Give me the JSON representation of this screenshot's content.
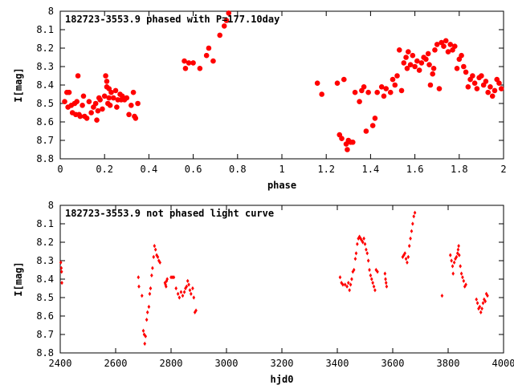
{
  "chart_data": [
    {
      "type": "scatter",
      "title": "182723-3553.9 phased with P=177.10day",
      "xlabel": "phase",
      "ylabel": "I[mag]",
      "xlim": [
        0,
        2
      ],
      "ylim": [
        8,
        8.8
      ],
      "y_inverted": true,
      "grid": false,
      "marker_color": "#ff0000",
      "marker": "filled-circle",
      "x_ticks": [
        "0",
        "0.2",
        "0.4",
        "0.6",
        "0.8",
        "1",
        "1.2",
        "1.4",
        "1.6",
        "1.8",
        "2"
      ],
      "y_ticks": [
        "8",
        "8.1",
        "8.2",
        "8.3",
        "8.4",
        "8.5",
        "8.6",
        "8.7",
        "8.8"
      ],
      "series": [
        {
          "points": [
            [
              0.02,
              8.49
            ],
            [
              0.03,
              8.44
            ],
            [
              0.035,
              8.52
            ],
            [
              0.04,
              8.44
            ],
            [
              0.05,
              8.51
            ],
            [
              0.055,
              8.55
            ],
            [
              0.065,
              8.5
            ],
            [
              0.07,
              8.56
            ],
            [
              0.075,
              8.49
            ],
            [
              0.08,
              8.35
            ],
            [
              0.085,
              8.56
            ],
            [
              0.09,
              8.57
            ],
            [
              0.1,
              8.51
            ],
            [
              0.105,
              8.46
            ],
            [
              0.11,
              8.57
            ],
            [
              0.12,
              8.58
            ],
            [
              0.13,
              8.49
            ],
            [
              0.14,
              8.55
            ],
            [
              0.15,
              8.52
            ],
            [
              0.16,
              8.5
            ],
            [
              0.165,
              8.59
            ],
            [
              0.17,
              8.54
            ],
            [
              0.175,
              8.47
            ],
            [
              0.18,
              8.48
            ],
            [
              0.19,
              8.53
            ],
            [
              0.2,
              8.46
            ],
            [
              0.205,
              8.35
            ],
            [
              0.21,
              8.38
            ],
            [
              0.21,
              8.41
            ],
            [
              0.215,
              8.5
            ],
            [
              0.22,
              8.42
            ],
            [
              0.22,
              8.47
            ],
            [
              0.225,
              8.51
            ],
            [
              0.23,
              8.44
            ],
            [
              0.24,
              8.47
            ],
            [
              0.25,
              8.43
            ],
            [
              0.255,
              8.52
            ],
            [
              0.26,
              8.48
            ],
            [
              0.27,
              8.45
            ],
            [
              0.275,
              8.48
            ],
            [
              0.28,
              8.46
            ],
            [
              0.29,
              8.48
            ],
            [
              0.3,
              8.47
            ],
            [
              0.31,
              8.56
            ],
            [
              0.32,
              8.51
            ],
            [
              0.33,
              8.44
            ],
            [
              0.335,
              8.57
            ],
            [
              0.34,
              8.58
            ],
            [
              0.35,
              8.5
            ],
            [
              0.56,
              8.27
            ],
            [
              0.565,
              8.31
            ],
            [
              0.58,
              8.28
            ],
            [
              0.6,
              8.28
            ],
            [
              0.63,
              8.31
            ],
            [
              0.66,
              8.24
            ],
            [
              0.67,
              8.2
            ],
            [
              0.69,
              8.27
            ],
            [
              0.72,
              8.13
            ],
            [
              0.74,
              8.08
            ],
            [
              0.75,
              8.05
            ],
            [
              0.76,
              8.01
            ],
            [
              1.16,
              8.39
            ],
            [
              1.18,
              8.45
            ],
            [
              1.25,
              8.39
            ],
            [
              1.26,
              8.67
            ],
            [
              1.27,
              8.69
            ],
            [
              1.28,
              8.37
            ],
            [
              1.29,
              8.72
            ],
            [
              1.295,
              8.75
            ],
            [
              1.3,
              8.7
            ],
            [
              1.31,
              8.71
            ],
            [
              1.32,
              8.71
            ],
            [
              1.33,
              8.44
            ],
            [
              1.35,
              8.49
            ],
            [
              1.36,
              8.43
            ],
            [
              1.37,
              8.41
            ],
            [
              1.38,
              8.65
            ],
            [
              1.39,
              8.44
            ],
            [
              1.41,
              8.62
            ],
            [
              1.42,
              8.58
            ],
            [
              1.43,
              8.44
            ],
            [
              1.45,
              8.41
            ],
            [
              1.46,
              8.46
            ],
            [
              1.47,
              8.42
            ],
            [
              1.49,
              8.44
            ],
            [
              1.5,
              8.37
            ],
            [
              1.51,
              8.4
            ],
            [
              1.52,
              8.35
            ],
            [
              1.53,
              8.21
            ],
            [
              1.54,
              8.43
            ],
            [
              1.55,
              8.28
            ],
            [
              1.56,
              8.25
            ],
            [
              1.565,
              8.31
            ],
            [
              1.57,
              8.22
            ],
            [
              1.58,
              8.29
            ],
            [
              1.59,
              8.24
            ],
            [
              1.6,
              8.3
            ],
            [
              1.61,
              8.27
            ],
            [
              1.62,
              8.32
            ],
            [
              1.63,
              8.28
            ],
            [
              1.64,
              8.25
            ],
            [
              1.65,
              8.26
            ],
            [
              1.66,
              8.23
            ],
            [
              1.665,
              8.29
            ],
            [
              1.67,
              8.4
            ],
            [
              1.68,
              8.34
            ],
            [
              1.685,
              8.31
            ],
            [
              1.69,
              8.21
            ],
            [
              1.7,
              8.18
            ],
            [
              1.71,
              8.42
            ],
            [
              1.72,
              8.17
            ],
            [
              1.73,
              8.19
            ],
            [
              1.74,
              8.16
            ],
            [
              1.75,
              8.22
            ],
            [
              1.76,
              8.18
            ],
            [
              1.77,
              8.21
            ],
            [
              1.78,
              8.19
            ],
            [
              1.79,
              8.31
            ],
            [
              1.8,
              8.26
            ],
            [
              1.81,
              8.24
            ],
            [
              1.82,
              8.3
            ],
            [
              1.83,
              8.33
            ],
            [
              1.84,
              8.41
            ],
            [
              1.85,
              8.37
            ],
            [
              1.86,
              8.35
            ],
            [
              1.87,
              8.39
            ],
            [
              1.88,
              8.42
            ],
            [
              1.89,
              8.36
            ],
            [
              1.9,
              8.35
            ],
            [
              1.91,
              8.4
            ],
            [
              1.92,
              8.38
            ],
            [
              1.93,
              8.44
            ],
            [
              1.94,
              8.41
            ],
            [
              1.95,
              8.46
            ],
            [
              1.96,
              8.43
            ],
            [
              1.97,
              8.37
            ],
            [
              1.98,
              8.39
            ],
            [
              1.99,
              8.42
            ]
          ]
        }
      ]
    },
    {
      "type": "scatter",
      "title": "182723-3553.9 not phased light curve",
      "xlabel": "hjd0",
      "ylabel": "I[mag]",
      "xlim": [
        2400,
        4000
      ],
      "ylim": [
        8,
        8.8
      ],
      "y_inverted": true,
      "grid": false,
      "marker_color": "#ff0000",
      "marker": "small-diamond",
      "x_ticks": [
        "2400",
        "2600",
        "2800",
        "3000",
        "3200",
        "3400",
        "3600",
        "3800",
        "4000"
      ],
      "y_ticks": [
        "8",
        "8.1",
        "8.2",
        "8.3",
        "8.4",
        "8.5",
        "8.6",
        "8.7",
        "8.8"
      ],
      "series": [
        {
          "points": [
            [
              2402,
              8.31
            ],
            [
              2404,
              8.34
            ],
            [
              2405,
              8.36
            ],
            [
              2406,
              8.42
            ],
            [
              2682,
              8.39
            ],
            [
              2684,
              8.44
            ],
            [
              2695,
              8.49
            ],
            [
              2700,
              8.68
            ],
            [
              2703,
              8.7
            ],
            [
              2705,
              8.75
            ],
            [
              2708,
              8.71
            ],
            [
              2712,
              8.62
            ],
            [
              2715,
              8.58
            ],
            [
              2720,
              8.55
            ],
            [
              2723,
              8.48
            ],
            [
              2726,
              8.45
            ],
            [
              2730,
              8.38
            ],
            [
              2733,
              8.34
            ],
            [
              2737,
              8.28
            ],
            [
              2740,
              8.22
            ],
            [
              2744,
              8.24
            ],
            [
              2748,
              8.27
            ],
            [
              2752,
              8.28
            ],
            [
              2756,
              8.3
            ],
            [
              2760,
              8.31
            ],
            [
              2778,
              8.42
            ],
            [
              2780,
              8.43
            ],
            [
              2782,
              8.44
            ],
            [
              2784,
              8.41
            ],
            [
              2786,
              8.4
            ],
            [
              2800,
              8.39
            ],
            [
              2805,
              8.39
            ],
            [
              2810,
              8.39
            ],
            [
              2818,
              8.45
            ],
            [
              2825,
              8.48
            ],
            [
              2830,
              8.5
            ],
            [
              2836,
              8.47
            ],
            [
              2842,
              8.49
            ],
            [
              2848,
              8.47
            ],
            [
              2852,
              8.45
            ],
            [
              2856,
              8.44
            ],
            [
              2860,
              8.41
            ],
            [
              2864,
              8.43
            ],
            [
              2868,
              8.46
            ],
            [
              2872,
              8.48
            ],
            [
              2878,
              8.45
            ],
            [
              2882,
              8.5
            ],
            [
              2886,
              8.58
            ],
            [
              2890,
              8.57
            ],
            [
              3410,
              8.39
            ],
            [
              3415,
              8.42
            ],
            [
              3420,
              8.43
            ],
            [
              3428,
              8.43
            ],
            [
              3435,
              8.44
            ],
            [
              3440,
              8.42
            ],
            [
              3444,
              8.46
            ],
            [
              3448,
              8.43
            ],
            [
              3452,
              8.4
            ],
            [
              3456,
              8.36
            ],
            [
              3460,
              8.35
            ],
            [
              3465,
              8.29
            ],
            [
              3468,
              8.26
            ],
            [
              3472,
              8.21
            ],
            [
              3476,
              8.18
            ],
            [
              3480,
              8.17
            ],
            [
              3484,
              8.18
            ],
            [
              3488,
              8.19
            ],
            [
              3492,
              8.2
            ],
            [
              3496,
              8.18
            ],
            [
              3500,
              8.21
            ],
            [
              3504,
              8.24
            ],
            [
              3508,
              8.26
            ],
            [
              3512,
              8.3
            ],
            [
              3516,
              8.35
            ],
            [
              3520,
              8.38
            ],
            [
              3524,
              8.4
            ],
            [
              3528,
              8.42
            ],
            [
              3532,
              8.44
            ],
            [
              3536,
              8.46
            ],
            [
              3540,
              8.35
            ],
            [
              3545,
              8.36
            ],
            [
              3572,
              8.37
            ],
            [
              3574,
              8.4
            ],
            [
              3576,
              8.42
            ],
            [
              3578,
              8.44
            ],
            [
              3636,
              8.28
            ],
            [
              3640,
              8.27
            ],
            [
              3644,
              8.26
            ],
            [
              3648,
              8.29
            ],
            [
              3652,
              8.31
            ],
            [
              3656,
              8.28
            ],
            [
              3660,
              8.22
            ],
            [
              3664,
              8.18
            ],
            [
              3668,
              8.14
            ],
            [
              3672,
              8.1
            ],
            [
              3676,
              8.06
            ],
            [
              3680,
              8.04
            ],
            [
              3778,
              8.49
            ],
            [
              3808,
              8.27
            ],
            [
              3812,
              8.3
            ],
            [
              3816,
              8.33
            ],
            [
              3818,
              8.37
            ],
            [
              3822,
              8.31
            ],
            [
              3826,
              8.29
            ],
            [
              3830,
              8.28
            ],
            [
              3834,
              8.26
            ],
            [
              3836,
              8.24
            ],
            [
              3838,
              8.22
            ],
            [
              3840,
              8.27
            ],
            [
              3844,
              8.33
            ],
            [
              3848,
              8.37
            ],
            [
              3852,
              8.39
            ],
            [
              3856,
              8.41
            ],
            [
              3860,
              8.44
            ],
            [
              3864,
              8.43
            ],
            [
              3902,
              8.51
            ],
            [
              3906,
              8.53
            ],
            [
              3910,
              8.56
            ],
            [
              3914,
              8.55
            ],
            [
              3918,
              8.58
            ],
            [
              3922,
              8.56
            ],
            [
              3926,
              8.53
            ],
            [
              3930,
              8.51
            ],
            [
              3934,
              8.52
            ],
            [
              3938,
              8.48
            ],
            [
              3942,
              8.49
            ]
          ]
        }
      ]
    }
  ]
}
